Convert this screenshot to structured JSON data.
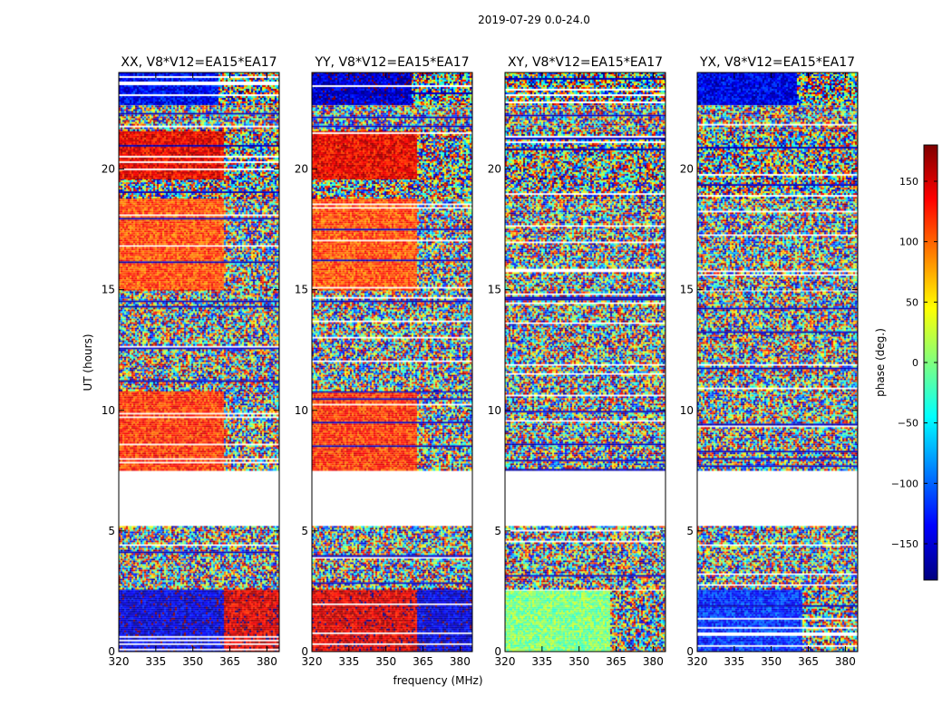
{
  "chart_data": {
    "type": "heatmap",
    "title": "2019-07-29 0.0-24.0",
    "xlabel": "frequency (MHz)",
    "ylabel": "UT (hours)",
    "xlim": [
      320,
      385
    ],
    "ylim": [
      0,
      24
    ],
    "xticks": [
      "320",
      "335",
      "350",
      "365",
      "380"
    ],
    "yticks": [
      "0",
      "5",
      "10",
      "15",
      "20"
    ],
    "colorbar": {
      "label": "phase (deg.)",
      "range": [
        -180,
        180
      ],
      "ticks": [
        "150",
        "100",
        "50",
        "0",
        "−50",
        "−100",
        "−150"
      ],
      "colors": [
        "#00007f",
        "#0000ff",
        "#007fff",
        "#00ffff",
        "#7fff7f",
        "#ffff00",
        "#ff7f00",
        "#ff0000",
        "#7f0000"
      ]
    },
    "panels": [
      {
        "title": "XX, V8*V12=EA15*EA17",
        "bands": [
          {
            "t0": 0.0,
            "t1": 2.6,
            "phase_low": -150,
            "phase_high": 150,
            "split_mhz": 362
          },
          {
            "t0": 2.6,
            "t1": 5.2,
            "phase_low": null,
            "phase_high": null,
            "split_mhz": null
          },
          {
            "t0": 7.5,
            "t1": 10.8,
            "phase_low": 120,
            "phase_high": null,
            "split_mhz": 362
          },
          {
            "t0": 10.8,
            "t1": 15.0,
            "phase_low": null,
            "phase_high": null,
            "split_mhz": null
          },
          {
            "t0": 15.0,
            "t1": 18.8,
            "phase_low": 110,
            "phase_high": null,
            "split_mhz": 362
          },
          {
            "t0": 18.8,
            "t1": 19.6,
            "phase_low": null,
            "phase_high": null,
            "split_mhz": null
          },
          {
            "t0": 19.6,
            "t1": 21.6,
            "phase_low": 140,
            "phase_high": null,
            "split_mhz": 362
          },
          {
            "t0": 21.6,
            "t1": 22.7,
            "phase_low": null,
            "phase_high": null,
            "split_mhz": null
          },
          {
            "t0": 22.7,
            "t1": 24.0,
            "phase_low": -135,
            "phase_high": null,
            "split_mhz": 360
          }
        ]
      },
      {
        "title": "YY, V8*V12=EA15*EA17",
        "bands": [
          {
            "t0": 0.0,
            "t1": 2.6,
            "phase_low": 150,
            "phase_high": -150,
            "split_mhz": 362
          },
          {
            "t0": 2.6,
            "t1": 5.2,
            "phase_low": null,
            "phase_high": null,
            "split_mhz": null
          },
          {
            "t0": 7.5,
            "t1": 10.8,
            "phase_low": 120,
            "phase_high": null,
            "split_mhz": 362
          },
          {
            "t0": 10.8,
            "t1": 15.0,
            "phase_low": null,
            "phase_high": null,
            "split_mhz": null
          },
          {
            "t0": 15.0,
            "t1": 18.8,
            "phase_low": 110,
            "phase_high": null,
            "split_mhz": 362
          },
          {
            "t0": 18.8,
            "t1": 19.6,
            "phase_low": null,
            "phase_high": null,
            "split_mhz": null
          },
          {
            "t0": 19.6,
            "t1": 21.6,
            "phase_low": 140,
            "phase_high": null,
            "split_mhz": 362
          },
          {
            "t0": 21.6,
            "t1": 22.7,
            "phase_low": null,
            "phase_high": null,
            "split_mhz": null
          },
          {
            "t0": 22.7,
            "t1": 24.0,
            "phase_low": -150,
            "phase_high": null,
            "split_mhz": 360
          }
        ]
      },
      {
        "title": "XY, V8*V12=EA15*EA17",
        "bands": [
          {
            "t0": 0.0,
            "t1": 2.6,
            "phase_low": 0,
            "phase_high": null,
            "split_mhz": 362
          },
          {
            "t0": 2.6,
            "t1": 5.2,
            "phase_low": null,
            "phase_high": null,
            "split_mhz": null
          },
          {
            "t0": 7.5,
            "t1": 10.8,
            "phase_low": null,
            "phase_high": null,
            "split_mhz": null
          },
          {
            "t0": 10.8,
            "t1": 15.0,
            "phase_low": null,
            "phase_high": null,
            "split_mhz": null
          },
          {
            "t0": 15.0,
            "t1": 18.8,
            "phase_low": null,
            "phase_high": null,
            "split_mhz": null
          },
          {
            "t0": 18.8,
            "t1": 19.6,
            "phase_low": null,
            "phase_high": null,
            "split_mhz": null
          },
          {
            "t0": 19.6,
            "t1": 21.6,
            "phase_low": null,
            "phase_high": null,
            "split_mhz": null
          },
          {
            "t0": 21.6,
            "t1": 22.7,
            "phase_low": null,
            "phase_high": null,
            "split_mhz": null
          },
          {
            "t0": 22.7,
            "t1": 24.0,
            "phase_low": null,
            "phase_high": null,
            "split_mhz": null
          }
        ]
      },
      {
        "title": "YX, V8*V12=EA15*EA17",
        "bands": [
          {
            "t0": 0.0,
            "t1": 2.6,
            "phase_low": -120,
            "phase_high": null,
            "split_mhz": 362
          },
          {
            "t0": 2.6,
            "t1": 5.2,
            "phase_low": null,
            "phase_high": null,
            "split_mhz": null
          },
          {
            "t0": 7.5,
            "t1": 10.8,
            "phase_low": null,
            "phase_high": null,
            "split_mhz": null
          },
          {
            "t0": 10.8,
            "t1": 15.0,
            "phase_low": null,
            "phase_high": null,
            "split_mhz": null
          },
          {
            "t0": 15.0,
            "t1": 18.8,
            "phase_low": null,
            "phase_high": null,
            "split_mhz": null
          },
          {
            "t0": 18.8,
            "t1": 19.6,
            "phase_low": null,
            "phase_high": null,
            "split_mhz": null
          },
          {
            "t0": 19.6,
            "t1": 21.6,
            "phase_low": null,
            "phase_high": null,
            "split_mhz": null
          },
          {
            "t0": 21.6,
            "t1": 22.7,
            "phase_low": null,
            "phase_high": null,
            "split_mhz": null
          },
          {
            "t0": 22.7,
            "t1": 24.0,
            "phase_low": -140,
            "phase_high": null,
            "split_mhz": 360
          }
        ]
      }
    ]
  }
}
